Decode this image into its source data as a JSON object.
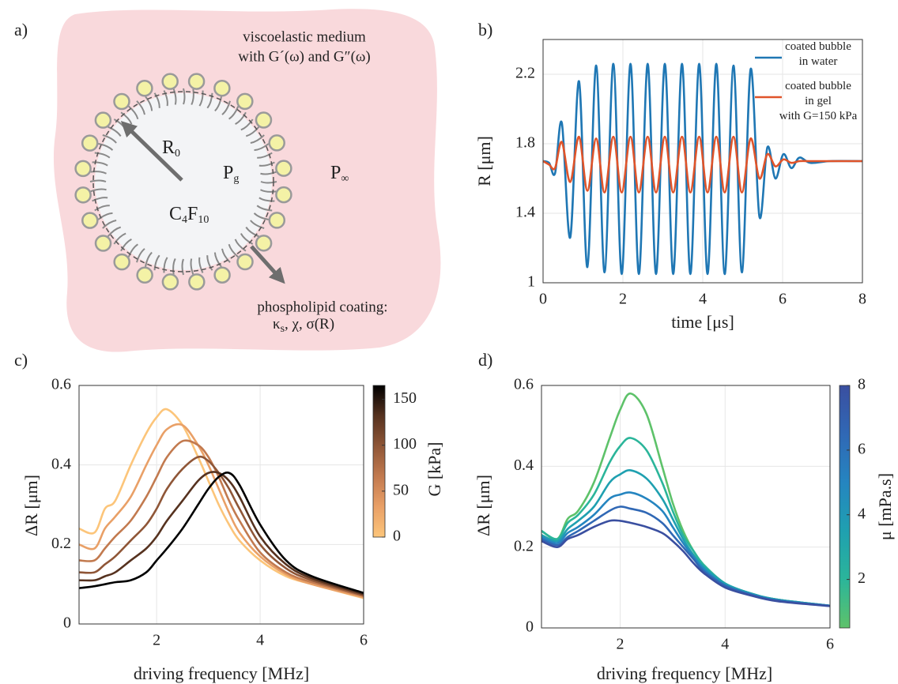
{
  "diagram": {
    "label": "a)",
    "medium": [
      "viscoelastic medium",
      "with G´(ω) and G″(ω)"
    ],
    "radius": {
      "base": "R",
      "sub": "0"
    },
    "gas_pressure": {
      "base": "P",
      "sub": "g"
    },
    "ambient_pressure": {
      "base": "P",
      "sub": "∞"
    },
    "gas": [
      "C",
      "4",
      "F",
      "10"
    ],
    "coating": "phospholipid coating:",
    "coating_params": [
      "κ",
      "s",
      ", χ, σ(R)"
    ]
  },
  "chart_data": [
    {
      "type": "line",
      "label": "b)",
      "xlabel": "time [μs]",
      "ylabel": "R [μm]",
      "x": [
        0,
        0.15,
        0.3,
        0.47,
        0.68,
        0.9,
        1.11,
        1.33,
        1.54,
        1.76,
        1.97,
        2.19,
        2.4,
        2.62,
        2.83,
        3.05,
        3.26,
        3.48,
        3.69,
        3.91,
        4.12,
        4.34,
        4.55,
        4.77,
        4.98,
        5.2,
        5.42,
        5.62,
        5.82,
        6.02,
        6.22,
        6.42,
        6.7,
        7.2,
        8
      ],
      "series": [
        {
          "name": "coated bubble\nin water",
          "color": "#1f77b4",
          "values": [
            1.7,
            1.69,
            1.63,
            1.92,
            1.26,
            2.16,
            1.09,
            2.25,
            1.06,
            2.26,
            1.05,
            2.26,
            1.05,
            2.26,
            1.05,
            2.26,
            1.05,
            2.26,
            1.05,
            2.26,
            1.05,
            2.26,
            1.05,
            2.25,
            1.06,
            2.23,
            1.38,
            1.78,
            1.6,
            1.74,
            1.66,
            1.72,
            1.69,
            1.7,
            1.7
          ]
        },
        {
          "name": "coated bubble\nin gel\nwith G=150 kPa",
          "color": "#e0542a",
          "values": [
            1.7,
            1.68,
            1.66,
            1.81,
            1.58,
            1.84,
            1.53,
            1.83,
            1.52,
            1.84,
            1.52,
            1.84,
            1.52,
            1.84,
            1.52,
            1.84,
            1.52,
            1.84,
            1.52,
            1.84,
            1.52,
            1.84,
            1.52,
            1.84,
            1.52,
            1.83,
            1.6,
            1.74,
            1.67,
            1.71,
            1.69,
            1.7,
            1.7,
            1.7,
            1.7
          ]
        }
      ],
      "xlim": [
        0,
        8
      ],
      "ylim": [
        1,
        2.4
      ],
      "xticks": [
        0,
        2,
        4,
        6,
        8
      ],
      "yticks": [
        1,
        1.4,
        1.8,
        2.2
      ],
      "grid": true,
      "legend": "upper right"
    },
    {
      "type": "line",
      "label": "c)",
      "xlabel": "driving frequency [MHz]",
      "ylabel": "ΔR [μm]",
      "x": [
        0.5,
        0.8,
        1,
        1.2,
        1.5,
        1.8,
        2,
        2.2,
        2.5,
        2.8,
        3,
        3.2,
        3.4,
        3.6,
        4,
        4.5,
        5,
        6
      ],
      "series": [
        {
          "color": "#fcc57a",
          "values": [
            0.24,
            0.23,
            0.29,
            0.31,
            0.4,
            0.48,
            0.52,
            0.54,
            0.5,
            0.42,
            0.36,
            0.3,
            0.25,
            0.21,
            0.16,
            0.12,
            0.1,
            0.065
          ]
        },
        {
          "color": "#e9a067",
          "values": [
            0.2,
            0.19,
            0.24,
            0.27,
            0.32,
            0.4,
            0.45,
            0.49,
            0.5,
            0.45,
            0.4,
            0.34,
            0.28,
            0.23,
            0.17,
            0.125,
            0.1,
            0.067
          ]
        },
        {
          "color": "#c27a4f",
          "values": [
            0.16,
            0.16,
            0.19,
            0.22,
            0.26,
            0.32,
            0.37,
            0.42,
            0.46,
            0.45,
            0.42,
            0.37,
            0.31,
            0.26,
            0.18,
            0.13,
            0.105,
            0.07
          ]
        },
        {
          "color": "#8f5637",
          "values": [
            0.13,
            0.13,
            0.15,
            0.17,
            0.21,
            0.25,
            0.29,
            0.34,
            0.39,
            0.42,
            0.41,
            0.38,
            0.34,
            0.29,
            0.2,
            0.14,
            0.11,
            0.072
          ]
        },
        {
          "color": "#56321f",
          "values": [
            0.11,
            0.11,
            0.12,
            0.13,
            0.16,
            0.19,
            0.22,
            0.26,
            0.31,
            0.36,
            0.38,
            0.38,
            0.36,
            0.32,
            0.22,
            0.15,
            0.115,
            0.075
          ]
        },
        {
          "color": "#000000",
          "values": [
            0.09,
            0.095,
            0.1,
            0.105,
            0.11,
            0.13,
            0.16,
            0.19,
            0.24,
            0.3,
            0.34,
            0.37,
            0.38,
            0.35,
            0.25,
            0.16,
            0.12,
            0.078
          ]
        }
      ],
      "xlim": [
        0.5,
        6
      ],
      "ylim": [
        0,
        0.6
      ],
      "xticks": [
        2,
        4,
        6
      ],
      "yticks": [
        0,
        0.2,
        0.4,
        0.6
      ],
      "grid": true,
      "colorbar": {
        "label": "G [kPa]",
        "lim": [
          0,
          165
        ],
        "ticks": [
          0,
          50,
          100,
          150
        ],
        "colors": [
          "#fcc57a",
          "#e9a067",
          "#c27a4f",
          "#8f5637",
          "#56321f",
          "#000000"
        ]
      }
    },
    {
      "type": "line",
      "label": "d)",
      "xlabel": "driving frequency [MHz]",
      "ylabel": "ΔR [μm]",
      "x": [
        0.5,
        0.8,
        1,
        1.2,
        1.5,
        1.8,
        2,
        2.2,
        2.5,
        2.8,
        3,
        3.2,
        3.4,
        3.6,
        4,
        4.5,
        5,
        6
      ],
      "series": [
        {
          "color": "#5ec26a",
          "values": [
            0.24,
            0.22,
            0.27,
            0.29,
            0.36,
            0.47,
            0.54,
            0.58,
            0.53,
            0.4,
            0.31,
            0.24,
            0.19,
            0.155,
            0.11,
            0.085,
            0.07,
            0.055
          ]
        },
        {
          "color": "#2bb59a",
          "values": [
            0.24,
            0.22,
            0.26,
            0.28,
            0.33,
            0.41,
            0.45,
            0.47,
            0.44,
            0.36,
            0.29,
            0.23,
            0.19,
            0.155,
            0.11,
            0.085,
            0.07,
            0.055
          ]
        },
        {
          "color": "#1fa0b0",
          "values": [
            0.23,
            0.215,
            0.245,
            0.265,
            0.3,
            0.36,
            0.38,
            0.39,
            0.37,
            0.32,
            0.27,
            0.22,
            0.18,
            0.15,
            0.11,
            0.085,
            0.07,
            0.055
          ]
        },
        {
          "color": "#2585c0",
          "values": [
            0.225,
            0.21,
            0.235,
            0.25,
            0.28,
            0.32,
            0.33,
            0.335,
            0.32,
            0.29,
            0.25,
            0.21,
            0.175,
            0.145,
            0.105,
            0.083,
            0.068,
            0.055
          ]
        },
        {
          "color": "#3068b5",
          "values": [
            0.22,
            0.205,
            0.225,
            0.24,
            0.265,
            0.29,
            0.3,
            0.295,
            0.285,
            0.26,
            0.23,
            0.2,
            0.17,
            0.14,
            0.105,
            0.082,
            0.068,
            0.054
          ]
        },
        {
          "color": "#3a4fa0",
          "values": [
            0.215,
            0.2,
            0.22,
            0.23,
            0.25,
            0.265,
            0.265,
            0.26,
            0.25,
            0.235,
            0.215,
            0.19,
            0.16,
            0.135,
            0.1,
            0.08,
            0.066,
            0.054
          ]
        }
      ],
      "xlim": [
        0.5,
        6
      ],
      "ylim": [
        0,
        0.6
      ],
      "xticks": [
        2,
        4,
        6
      ],
      "yticks": [
        0,
        0.2,
        0.4,
        0.6
      ],
      "grid": true,
      "colorbar": {
        "label": "μ [mPa.s]",
        "lim": [
          0.5,
          8
        ],
        "ticks": [
          2,
          4,
          6,
          8
        ],
        "colors": [
          "#5ec26a",
          "#2bb59a",
          "#1fa0b0",
          "#2585c0",
          "#3068b5",
          "#3a4fa0"
        ]
      }
    }
  ]
}
